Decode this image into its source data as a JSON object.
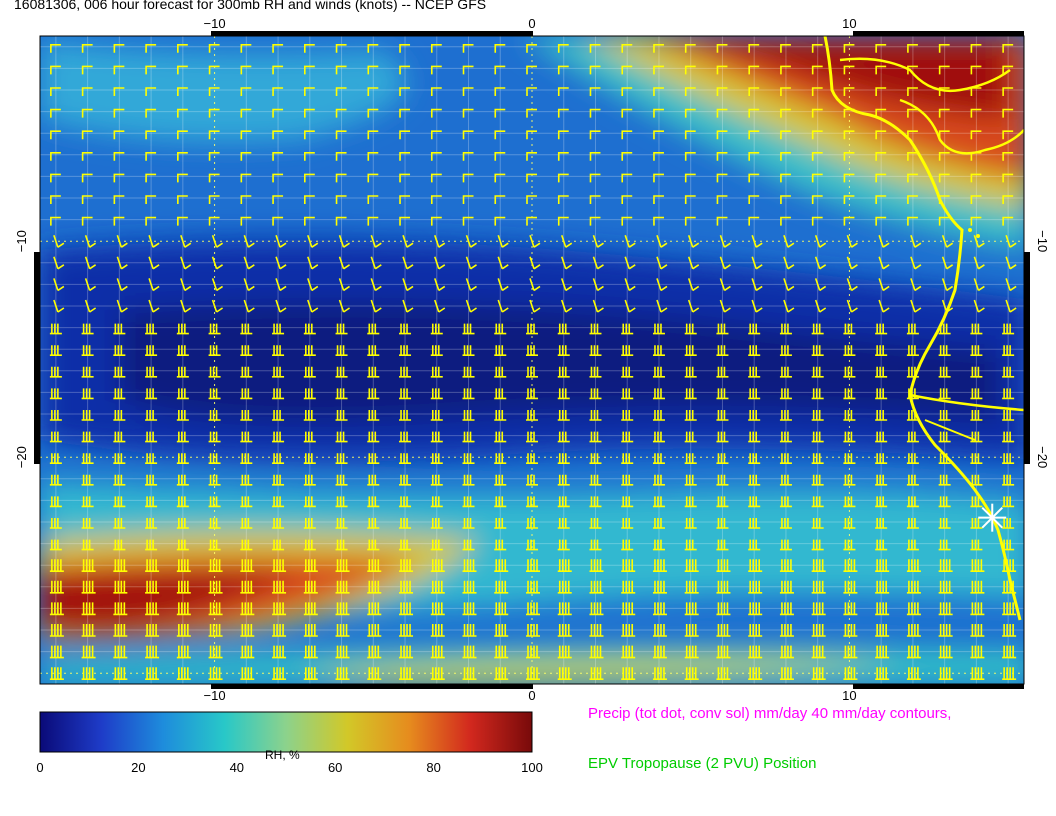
{
  "title": "16081306, 006 hour forecast for 300mb RH and winds (knots) -- NCEP GFS",
  "map": {
    "lon_range": [
      -15.5,
      15.5
    ],
    "lat_range": [
      -30.5,
      -0.5
    ],
    "lon_ticks": [
      -10,
      0,
      10
    ],
    "lat_ticks": [
      -10,
      -20
    ],
    "lon_tick_labels": [
      "−10",
      "0",
      "10"
    ],
    "lat_tick_labels": [
      "−10",
      "−20"
    ],
    "grid": true,
    "barb_color": "#ffff00",
    "coast_color": "#ffff00",
    "storm_marker": {
      "lon": 14.5,
      "lat": -22.8
    }
  },
  "colorbar": {
    "label": "RH, %",
    "ticks": [
      "0",
      "20",
      "40",
      "60",
      "80",
      "100"
    ],
    "colors": [
      "#0a0a78",
      "#1e3cc8",
      "#1e8cdc",
      "#28c8c8",
      "#8cd28c",
      "#d2c828",
      "#e68c1e",
      "#d2281e",
      "#780a0a"
    ]
  },
  "legend": {
    "precip": "Precip (tot dot, conv sol) mm/day 40 mm/day contours,",
    "epv": "EPV Tropopause (2 PVU) Position"
  }
}
